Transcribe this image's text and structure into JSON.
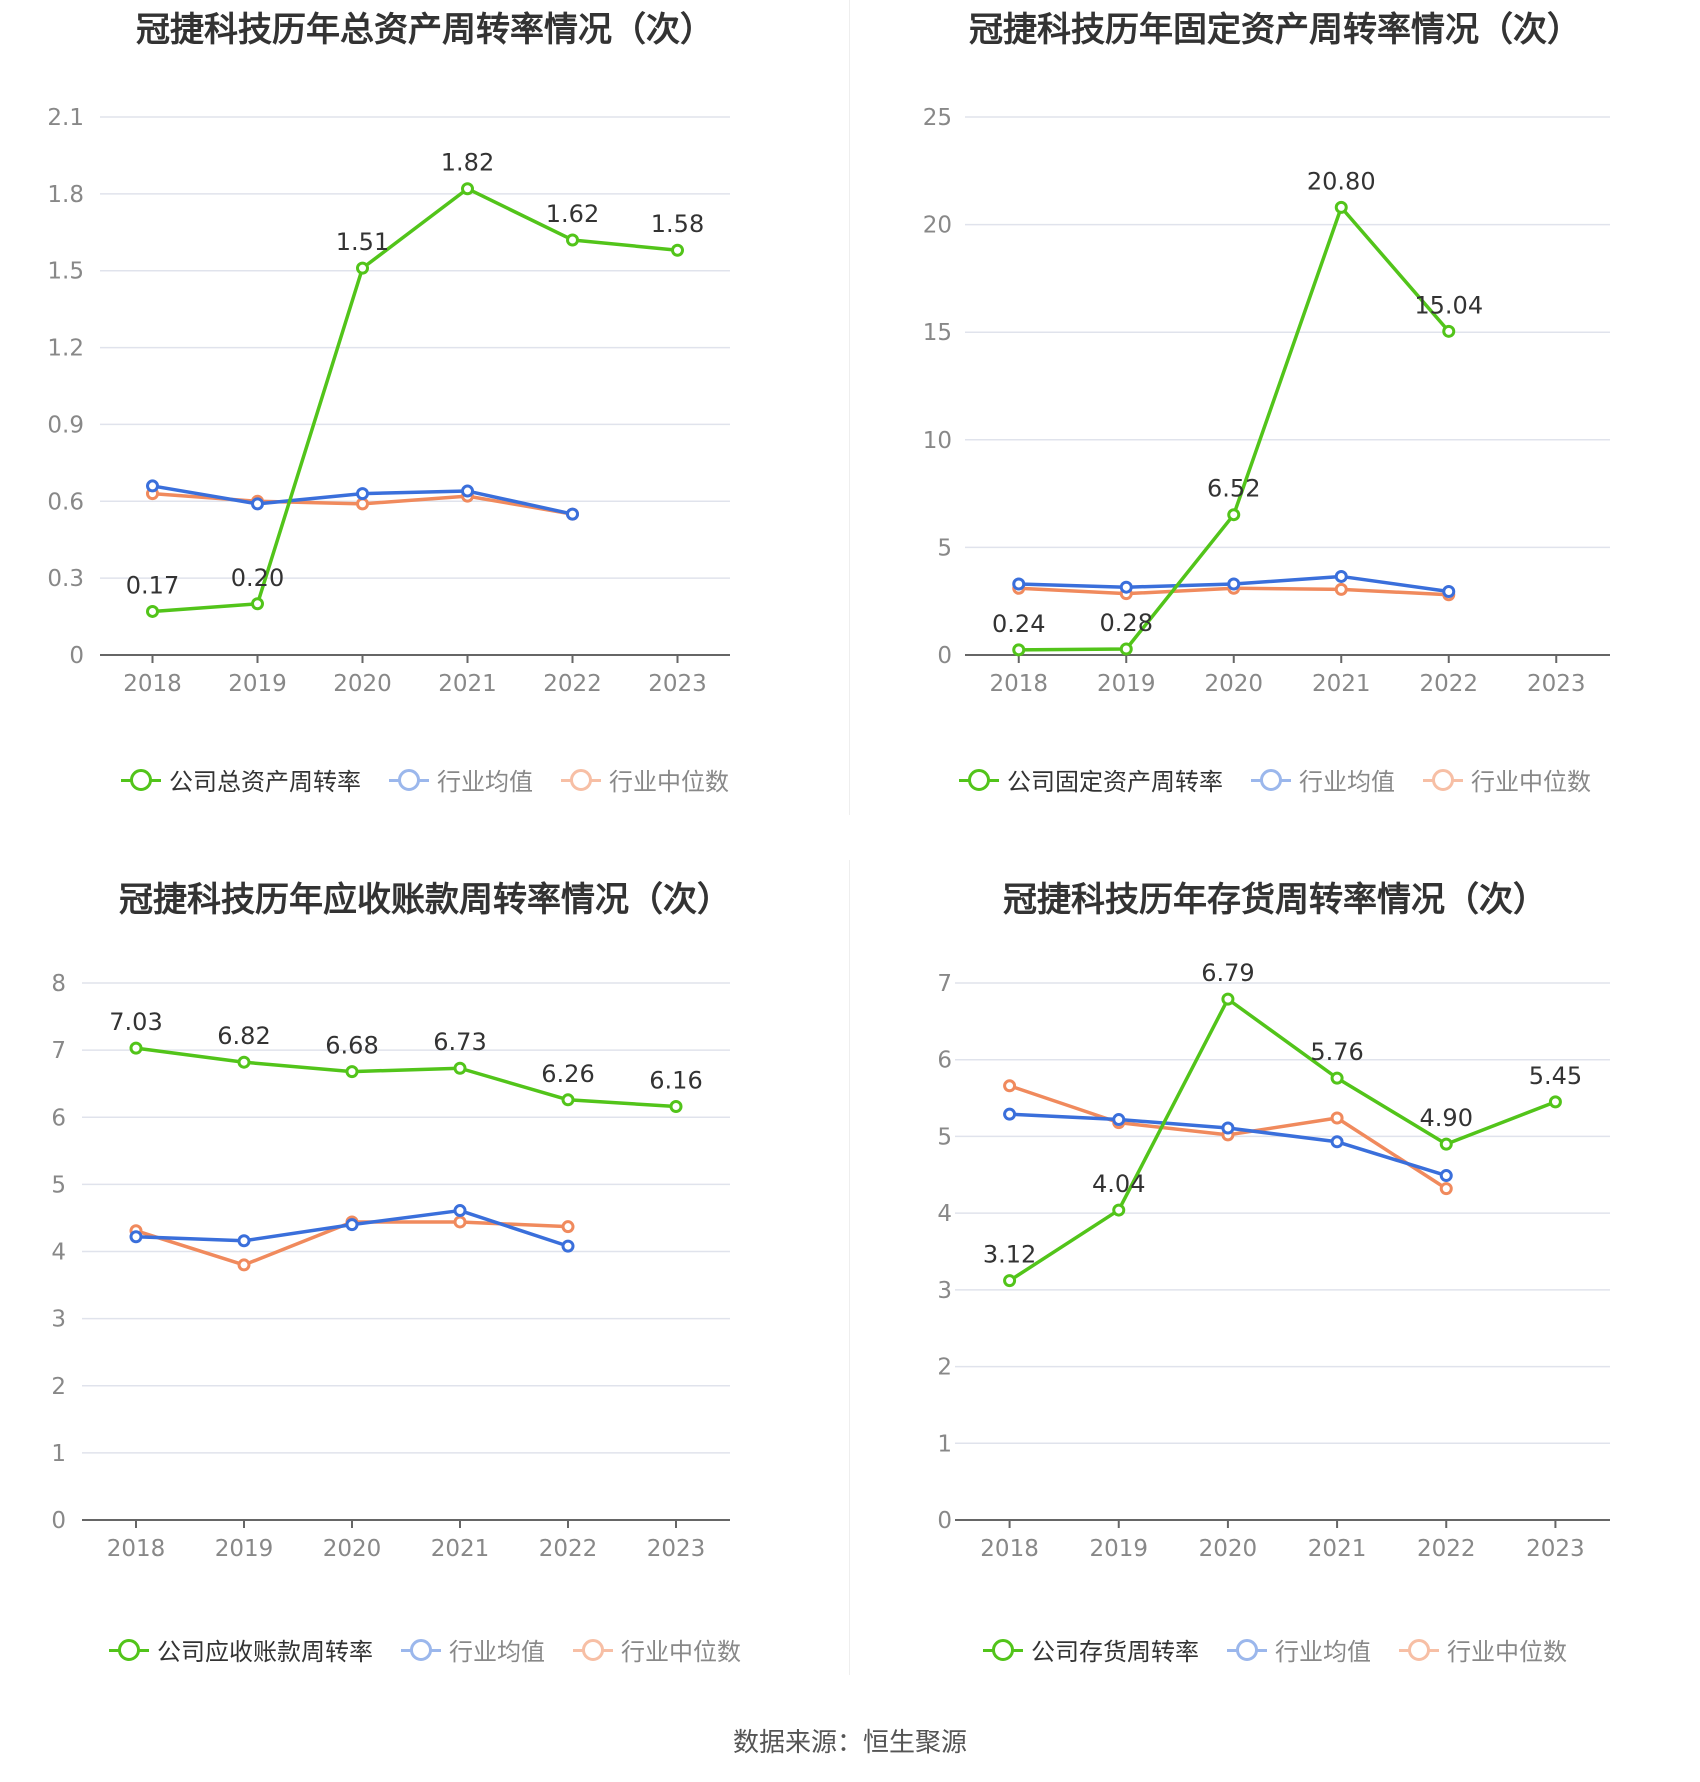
{
  "source": "数据来源：恒生聚源",
  "colors": {
    "company": "#52c41a",
    "avg": "#3a6fdb",
    "median": "#f08a5d",
    "grid": "#e0e3ec",
    "axis": "#666666",
    "tick": "#888888"
  },
  "chart_data": [
    {
      "type": "line",
      "title": "冠捷科技历年总资产周转率情况（次）",
      "categories": [
        "2018",
        "2019",
        "2020",
        "2021",
        "2022",
        "2023"
      ],
      "yticks": [
        "0",
        "0.3",
        "0.6",
        "0.9",
        "1.2",
        "1.5",
        "1.8",
        "2.1"
      ],
      "ylim": [
        0,
        2.1
      ],
      "series": [
        {
          "name": "公司总资产周转率",
          "values": [
            0.17,
            0.2,
            1.51,
            1.82,
            1.62,
            1.58
          ],
          "labels": [
            "0.17",
            "0.20",
            "1.51",
            "1.82",
            "1.62",
            "1.58"
          ]
        },
        {
          "name": "行业均值",
          "values": [
            0.66,
            0.59,
            0.63,
            0.64,
            0.55,
            null
          ]
        },
        {
          "name": "行业中位数",
          "values": [
            0.63,
            0.6,
            0.59,
            0.62,
            0.55,
            null
          ]
        }
      ]
    },
    {
      "type": "line",
      "title": "冠捷科技历年固定资产周转率情况（次）",
      "categories": [
        "2018",
        "2019",
        "2020",
        "2021",
        "2022",
        "2023"
      ],
      "yticks": [
        "0",
        "5",
        "10",
        "15",
        "20",
        "25"
      ],
      "ylim": [
        0,
        25
      ],
      "series": [
        {
          "name": "公司固定资产周转率",
          "values": [
            0.24,
            0.28,
            6.52,
            20.8,
            15.04,
            null
          ],
          "labels": [
            "0.24",
            "0.28",
            "6.52",
            "20.80",
            "15.04",
            null
          ]
        },
        {
          "name": "行业均值",
          "values": [
            3.3,
            3.15,
            3.3,
            3.65,
            2.95,
            null
          ]
        },
        {
          "name": "行业中位数",
          "values": [
            3.1,
            2.85,
            3.1,
            3.05,
            2.8,
            null
          ]
        }
      ]
    },
    {
      "type": "line",
      "title": "冠捷科技历年应收账款周转率情况（次）",
      "categories": [
        "2018",
        "2019",
        "2020",
        "2021",
        "2022",
        "2023"
      ],
      "yticks": [
        "0",
        "1",
        "2",
        "3",
        "4",
        "5",
        "6",
        "7",
        "8"
      ],
      "ylim": [
        0,
        8
      ],
      "series": [
        {
          "name": "公司应收账款周转率",
          "values": [
            7.03,
            6.82,
            6.68,
            6.73,
            6.26,
            6.16
          ],
          "labels": [
            "7.03",
            "6.82",
            "6.68",
            "6.73",
            "6.26",
            "6.16"
          ]
        },
        {
          "name": "行业均值",
          "values": [
            4.22,
            4.16,
            4.4,
            4.61,
            4.08,
            null
          ]
        },
        {
          "name": "行业中位数",
          "values": [
            4.31,
            3.8,
            4.44,
            4.44,
            4.37,
            null
          ]
        }
      ]
    },
    {
      "type": "line",
      "title": "冠捷科技历年存货周转率情况（次）",
      "categories": [
        "2018",
        "2019",
        "2020",
        "2021",
        "2022",
        "2023"
      ],
      "yticks": [
        "0",
        "1",
        "2",
        "3",
        "4",
        "5",
        "6",
        "7"
      ],
      "ylim": [
        0,
        7
      ],
      "series": [
        {
          "name": "公司存货周转率",
          "values": [
            3.12,
            4.04,
            6.79,
            5.76,
            4.9,
            5.45
          ],
          "labels": [
            "3.12",
            "4.04",
            "6.79",
            "5.76",
            "4.90",
            "5.45"
          ]
        },
        {
          "name": "行业均值",
          "values": [
            5.29,
            5.22,
            5.11,
            4.93,
            4.49,
            null
          ]
        },
        {
          "name": "行业中位数",
          "values": [
            5.66,
            5.18,
            5.02,
            5.24,
            4.32,
            null
          ]
        }
      ]
    }
  ]
}
